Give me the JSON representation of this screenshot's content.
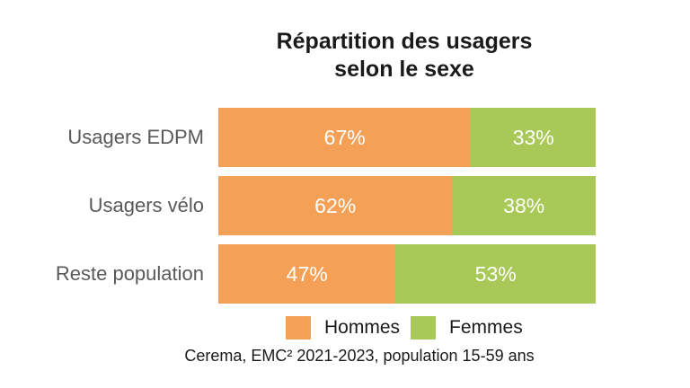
{
  "title": {
    "line1": "Répartition des usagers",
    "line2": "selon le sexe"
  },
  "colors": {
    "hommes": "#F4A056",
    "femmes": "#A8C957",
    "category_label": "#595959",
    "title_text": "#1A1A1A",
    "bar_value_text": "#FFFFFF",
    "background": "#FFFFFF"
  },
  "rows": [
    {
      "label": "Usagers EDPM",
      "hommes": "67%",
      "femmes": "33%"
    },
    {
      "label": "Usagers vélo",
      "hommes": "62%",
      "femmes": "38%"
    },
    {
      "label": "Reste population",
      "hommes": "47%",
      "femmes": "53%"
    }
  ],
  "legend": {
    "hommes": "Hommes",
    "femmes": "Femmes"
  },
  "source": "Cerema, EMC² 2021-2023, population 15-59 ans",
  "chart_data": {
    "type": "bar",
    "orientation": "horizontal",
    "stacked": true,
    "stacked_to_100": true,
    "title": "Répartition des usagers selon le sexe",
    "categories": [
      "Usagers EDPM",
      "Usagers vélo",
      "Reste population"
    ],
    "series": [
      {
        "name": "Hommes",
        "color": "#F4A056",
        "values": [
          67,
          62,
          47
        ]
      },
      {
        "name": "Femmes",
        "color": "#A8C957",
        "values": [
          33,
          38,
          53
        ]
      }
    ],
    "value_label_format": "percent",
    "xlim": [
      0,
      100
    ],
    "grid": false,
    "legend_position": "bottom",
    "annotations": [
      "Cerema, EMC² 2021-2023, population 15-59 ans"
    ]
  }
}
